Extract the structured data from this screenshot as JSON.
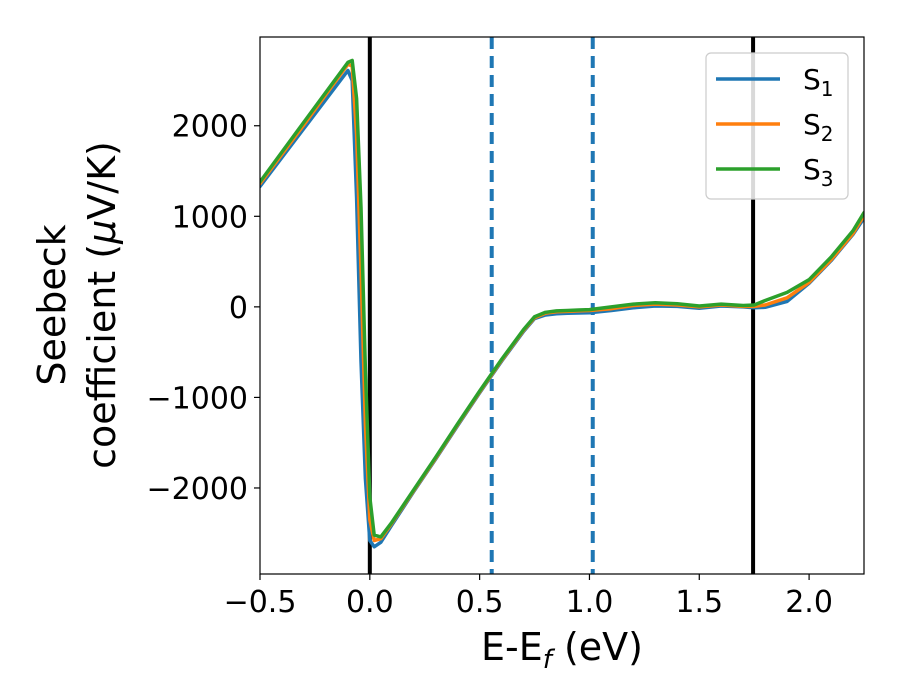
{
  "chart_data": {
    "type": "line",
    "title": "",
    "xlabel": {
      "main": "E-E",
      "sub": "f",
      "unit": " (eV)"
    },
    "ylabel": {
      "line1": "Seebeck",
      "line2": "coefficient  (",
      "mu": "μ",
      "line2_end": "V/K)"
    },
    "xlim": [
      -0.5,
      2.25
    ],
    "ylim": [
      -2950,
      2980
    ],
    "xticks": [
      -0.5,
      0.0,
      0.5,
      1.0,
      1.5,
      2.0
    ],
    "xtick_labels": [
      "−0.5",
      "0.0",
      "0.5",
      "1.0",
      "1.5",
      "2.0"
    ],
    "yticks": [
      -2000,
      -1000,
      0,
      1000,
      2000
    ],
    "ytick_labels": [
      "−2000",
      "−1000",
      "0",
      "1000",
      "2000"
    ],
    "grid": false,
    "legend_position": "top-right",
    "vlines": [
      {
        "x": 0.0,
        "style": "solid",
        "color": "#000000"
      },
      {
        "x": 0.555,
        "style": "dashed",
        "color": "#1f77b4"
      },
      {
        "x": 1.015,
        "style": "dashed",
        "color": "#1f77b4"
      },
      {
        "x": 1.745,
        "style": "solid",
        "color": "#000000"
      }
    ],
    "series": [
      {
        "name": "S",
        "sub": "1",
        "color": "#1f77b4",
        "x": [
          -0.5,
          -0.3,
          -0.1,
          -0.08,
          -0.06,
          -0.04,
          -0.02,
          0.0,
          0.02,
          0.05,
          0.1,
          0.2,
          0.3,
          0.4,
          0.5,
          0.6,
          0.7,
          0.75,
          0.8,
          0.85,
          0.9,
          0.95,
          1.0,
          1.1,
          1.2,
          1.3,
          1.4,
          1.5,
          1.6,
          1.7,
          1.75,
          1.8,
          1.9,
          2.0,
          2.1,
          2.2,
          2.25
        ],
        "y": [
          1330,
          1970,
          2610,
          2500,
          1200,
          -600,
          -1900,
          -2580,
          -2650,
          -2600,
          -2410,
          -2040,
          -1680,
          -1310,
          -950,
          -600,
          -270,
          -130,
          -90,
          -75,
          -70,
          -68,
          -65,
          -40,
          -10,
          10,
          5,
          -15,
          10,
          0,
          -10,
          -5,
          60,
          260,
          510,
          800,
          980
        ]
      },
      {
        "name": "S",
        "sub": "2",
        "color": "#ff7f0e",
        "x": [
          -0.5,
          -0.3,
          -0.1,
          -0.08,
          -0.06,
          -0.04,
          -0.02,
          0.0,
          0.02,
          0.05,
          0.1,
          0.2,
          0.3,
          0.4,
          0.5,
          0.6,
          0.7,
          0.75,
          0.8,
          0.85,
          0.9,
          0.95,
          1.0,
          1.1,
          1.2,
          1.3,
          1.4,
          1.5,
          1.6,
          1.7,
          1.75,
          1.8,
          1.9,
          2.0,
          2.1,
          2.2,
          2.25
        ],
        "y": [
          1360,
          2010,
          2680,
          2660,
          1900,
          400,
          -1300,
          -2350,
          -2580,
          -2560,
          -2390,
          -2030,
          -1670,
          -1300,
          -940,
          -590,
          -260,
          -120,
          -70,
          -55,
          -50,
          -45,
          -40,
          -20,
          15,
          30,
          20,
          0,
          20,
          5,
          5,
          20,
          100,
          270,
          520,
          810,
          1010
        ]
      },
      {
        "name": "S",
        "sub": "3",
        "color": "#2ca02c",
        "x": [
          -0.5,
          -0.3,
          -0.1,
          -0.08,
          -0.06,
          -0.04,
          -0.02,
          0.0,
          0.02,
          0.05,
          0.1,
          0.2,
          0.3,
          0.4,
          0.5,
          0.6,
          0.7,
          0.75,
          0.8,
          0.85,
          0.9,
          0.95,
          1.0,
          1.1,
          1.2,
          1.3,
          1.4,
          1.5,
          1.6,
          1.7,
          1.75,
          1.8,
          1.9,
          2.0,
          2.1,
          2.2,
          2.25
        ],
        "y": [
          1380,
          2040,
          2700,
          2720,
          2300,
          1100,
          -700,
          -2100,
          -2520,
          -2540,
          -2380,
          -2020,
          -1660,
          -1290,
          -930,
          -580,
          -250,
          -110,
          -60,
          -45,
          -40,
          -35,
          -30,
          0,
          30,
          45,
          35,
          10,
          30,
          15,
          20,
          70,
          160,
          300,
          550,
          840,
          1040
        ]
      }
    ]
  }
}
